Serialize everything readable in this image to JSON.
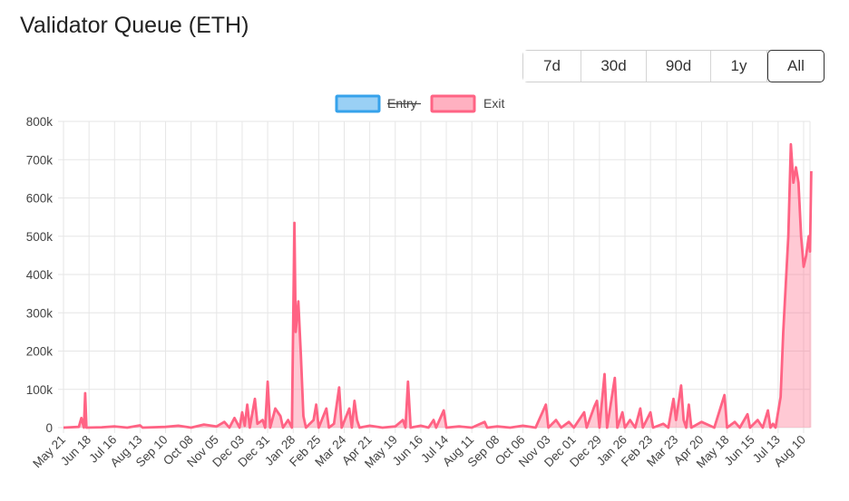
{
  "header": {
    "title": "Validator Queue (ETH)"
  },
  "range_buttons": [
    {
      "label": "7d",
      "active": false
    },
    {
      "label": "30d",
      "active": false
    },
    {
      "label": "90d",
      "active": false
    },
    {
      "label": "1y",
      "active": false
    },
    {
      "label": "All",
      "active": true
    }
  ],
  "chart_data": {
    "type": "area",
    "title": "Validator Queue (ETH)",
    "legend": [
      {
        "name": "Entry",
        "hidden": true,
        "color": "#36a2eb"
      },
      {
        "name": "Exit",
        "hidden": false,
        "color": "#ff6384"
      }
    ],
    "legend_position": "top",
    "grid": true,
    "ylim": [
      0,
      800000
    ],
    "y_ticks": [
      "0",
      "100k",
      "200k",
      "300k",
      "400k",
      "500k",
      "600k",
      "700k",
      "800k"
    ],
    "x_ticks": [
      "May 21",
      "Jun 18",
      "Jul 16",
      "Aug 13",
      "Sep 10",
      "Oct 08",
      "Nov 05",
      "Dec 03",
      "Dec 31",
      "Jan 28",
      "Feb 25",
      "Mar 24",
      "Apr 21",
      "May 19",
      "Jun 16",
      "Jul 14",
      "Aug 11",
      "Sep 08",
      "Oct 06",
      "Nov 03",
      "Dec 01",
      "Dec 29",
      "Jan 26",
      "Feb 23",
      "Mar 23",
      "Apr 20",
      "May 18",
      "Jun 15",
      "Jul 13",
      "Aug 10"
    ],
    "series": [
      {
        "name": "Exit",
        "color": "#ff6384",
        "points": [
          [
            0,
            0
          ],
          [
            0.6,
            2000
          ],
          [
            0.7,
            25000
          ],
          [
            0.8,
            0
          ],
          [
            0.85,
            90000
          ],
          [
            0.9,
            0
          ],
          [
            1.5,
            1000
          ],
          [
            2,
            3000
          ],
          [
            2.5,
            0
          ],
          [
            3,
            6000
          ],
          [
            3.1,
            0
          ],
          [
            4,
            2000
          ],
          [
            4.5,
            5000
          ],
          [
            5,
            0
          ],
          [
            5.5,
            8000
          ],
          [
            6,
            3000
          ],
          [
            6.3,
            15000
          ],
          [
            6.5,
            0
          ],
          [
            6.7,
            25000
          ],
          [
            6.9,
            0
          ],
          [
            7,
            40000
          ],
          [
            7.1,
            5000
          ],
          [
            7.2,
            60000
          ],
          [
            7.3,
            0
          ],
          [
            7.5,
            75000
          ],
          [
            7.6,
            10000
          ],
          [
            7.8,
            20000
          ],
          [
            7.9,
            0
          ],
          [
            8,
            120000
          ],
          [
            8.1,
            0
          ],
          [
            8.3,
            50000
          ],
          [
            8.5,
            30000
          ],
          [
            8.6,
            0
          ],
          [
            8.8,
            20000
          ],
          [
            8.95,
            0
          ],
          [
            9.05,
            535000
          ],
          [
            9.1,
            250000
          ],
          [
            9.2,
            330000
          ],
          [
            9.3,
            190000
          ],
          [
            9.4,
            30000
          ],
          [
            9.5,
            0
          ],
          [
            9.8,
            20000
          ],
          [
            9.9,
            60000
          ],
          [
            10,
            0
          ],
          [
            10.3,
            50000
          ],
          [
            10.4,
            0
          ],
          [
            10.6,
            10000
          ],
          [
            10.8,
            105000
          ],
          [
            10.9,
            0
          ],
          [
            11.2,
            50000
          ],
          [
            11.3,
            0
          ],
          [
            11.4,
            70000
          ],
          [
            11.5,
            20000
          ],
          [
            11.6,
            0
          ],
          [
            12,
            5000
          ],
          [
            12.5,
            0
          ],
          [
            13,
            3000
          ],
          [
            13.3,
            20000
          ],
          [
            13.4,
            0
          ],
          [
            13.5,
            120000
          ],
          [
            13.6,
            0
          ],
          [
            14,
            5000
          ],
          [
            14.3,
            0
          ],
          [
            14.5,
            20000
          ],
          [
            14.6,
            0
          ],
          [
            14.9,
            45000
          ],
          [
            15,
            0
          ],
          [
            15.5,
            3000
          ],
          [
            16,
            0
          ],
          [
            16.5,
            15000
          ],
          [
            16.6,
            0
          ],
          [
            17,
            3000
          ],
          [
            17.5,
            0
          ],
          [
            18,
            5000
          ],
          [
            18.5,
            0
          ],
          [
            18.9,
            60000
          ],
          [
            19,
            0
          ],
          [
            19.3,
            20000
          ],
          [
            19.5,
            0
          ],
          [
            19.8,
            15000
          ],
          [
            20,
            0
          ],
          [
            20.4,
            40000
          ],
          [
            20.5,
            0
          ],
          [
            20.8,
            55000
          ],
          [
            20.9,
            70000
          ],
          [
            21,
            0
          ],
          [
            21.2,
            140000
          ],
          [
            21.3,
            0
          ],
          [
            21.6,
            130000
          ],
          [
            21.7,
            0
          ],
          [
            21.9,
            40000
          ],
          [
            22,
            0
          ],
          [
            22.2,
            20000
          ],
          [
            22.4,
            0
          ],
          [
            22.6,
            50000
          ],
          [
            22.7,
            0
          ],
          [
            23,
            40000
          ],
          [
            23.1,
            0
          ],
          [
            23.5,
            10000
          ],
          [
            23.7,
            0
          ],
          [
            23.9,
            75000
          ],
          [
            24,
            20000
          ],
          [
            24.2,
            110000
          ],
          [
            24.3,
            20000
          ],
          [
            24.4,
            0
          ],
          [
            24.5,
            60000
          ],
          [
            24.6,
            0
          ],
          [
            25,
            15000
          ],
          [
            25.5,
            0
          ],
          [
            25.9,
            85000
          ],
          [
            26,
            0
          ],
          [
            26.3,
            15000
          ],
          [
            26.5,
            0
          ],
          [
            26.8,
            35000
          ],
          [
            26.9,
            0
          ],
          [
            27.2,
            20000
          ],
          [
            27.4,
            0
          ],
          [
            27.6,
            45000
          ],
          [
            27.7,
            0
          ],
          [
            27.8,
            10000
          ],
          [
            27.9,
            0
          ],
          [
            28.1,
            80000
          ],
          [
            28.2,
            250000
          ],
          [
            28.4,
            500000
          ],
          [
            28.5,
            740000
          ],
          [
            28.6,
            640000
          ],
          [
            28.7,
            680000
          ],
          [
            28.8,
            640000
          ],
          [
            28.9,
            500000
          ],
          [
            29,
            420000
          ],
          [
            29.1,
            450000
          ],
          [
            29.2,
            500000
          ],
          [
            29.25,
            460000
          ],
          [
            29.3,
            670000
          ]
        ]
      }
    ]
  }
}
